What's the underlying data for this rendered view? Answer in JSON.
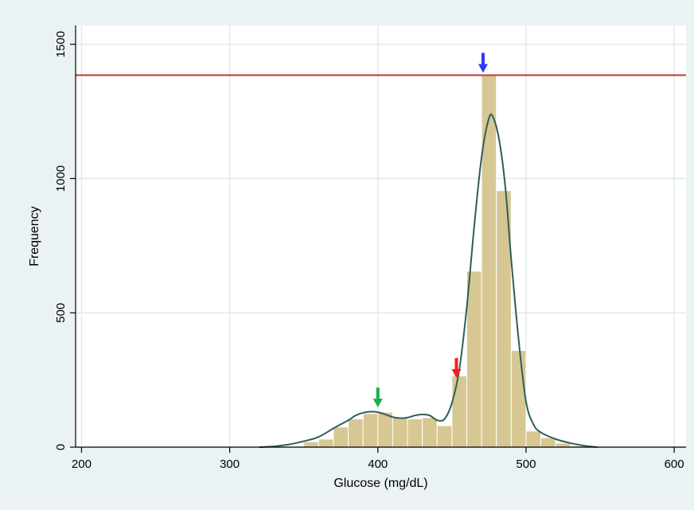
{
  "chart_data": {
    "type": "bar",
    "title": "",
    "xlabel": "Glucose (mg/dL)",
    "ylabel": "Frequency",
    "xlim": [
      196,
      608
    ],
    "ylim": [
      0,
      1570
    ],
    "xticks": [
      200,
      300,
      400,
      500,
      600
    ],
    "yticks": [
      0,
      500,
      1000,
      1500
    ],
    "grid": true,
    "bin_width": 10,
    "bins": [
      {
        "x0": 200,
        "value": 3
      },
      {
        "x0": 350,
        "value": 20
      },
      {
        "x0": 360,
        "value": 30
      },
      {
        "x0": 370,
        "value": 75
      },
      {
        "x0": 380,
        "value": 105
      },
      {
        "x0": 390,
        "value": 125
      },
      {
        "x0": 400,
        "value": 130
      },
      {
        "x0": 410,
        "value": 112
      },
      {
        "x0": 420,
        "value": 105
      },
      {
        "x0": 430,
        "value": 110
      },
      {
        "x0": 440,
        "value": 80
      },
      {
        "x0": 450,
        "value": 265
      },
      {
        "x0": 460,
        "value": 655
      },
      {
        "x0": 470,
        "value": 1385
      },
      {
        "x0": 480,
        "value": 955
      },
      {
        "x0": 490,
        "value": 360
      },
      {
        "x0": 500,
        "value": 60
      },
      {
        "x0": 510,
        "value": 35
      },
      {
        "x0": 520,
        "value": 15
      },
      {
        "x0": 530,
        "value": 5
      }
    ],
    "density_curve": [
      [
        320,
        0
      ],
      [
        330,
        3
      ],
      [
        340,
        10
      ],
      [
        350,
        22
      ],
      [
        360,
        38
      ],
      [
        370,
        70
      ],
      [
        380,
        100
      ],
      [
        385,
        118
      ],
      [
        390,
        128
      ],
      [
        395,
        132
      ],
      [
        400,
        130
      ],
      [
        405,
        122
      ],
      [
        410,
        112
      ],
      [
        415,
        108
      ],
      [
        420,
        110
      ],
      [
        425,
        118
      ],
      [
        430,
        122
      ],
      [
        435,
        118
      ],
      [
        440,
        100
      ],
      [
        445,
        105
      ],
      [
        450,
        165
      ],
      [
        455,
        290
      ],
      [
        460,
        520
      ],
      [
        465,
        820
      ],
      [
        470,
        1080
      ],
      [
        475,
        1225
      ],
      [
        478,
        1225
      ],
      [
        482,
        1140
      ],
      [
        486,
        970
      ],
      [
        490,
        700
      ],
      [
        495,
        400
      ],
      [
        500,
        170
      ],
      [
        505,
        85
      ],
      [
        510,
        55
      ],
      [
        520,
        30
      ],
      [
        530,
        15
      ],
      [
        540,
        5
      ],
      [
        548,
        0
      ]
    ],
    "reference_line": {
      "y": 1385,
      "color": "#c0392b"
    },
    "markers": [
      {
        "x": 453,
        "color": "#ff1a1a"
      },
      {
        "x": 471,
        "color": "#2a3bff"
      },
      {
        "x": 400,
        "color": "#18b04a"
      }
    ],
    "colors": {
      "outer_background": "#eaf2f3",
      "plot_background": "#ffffff",
      "bar_fill": "#d7c793",
      "bar_stroke": "#ffffff",
      "curve": "#2e5e5a",
      "grid": "#e1e9ea",
      "axis": "#000000"
    }
  }
}
